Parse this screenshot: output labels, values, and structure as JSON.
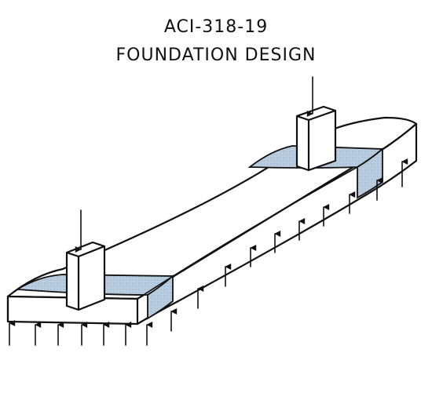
{
  "title_line_1": "ACI-318-19",
  "title_line_2": "FOUNDATION DESIGN",
  "colors": {
    "shaded_band": "#b9cde0",
    "ink": "#111111",
    "background": "#ffffff"
  }
}
